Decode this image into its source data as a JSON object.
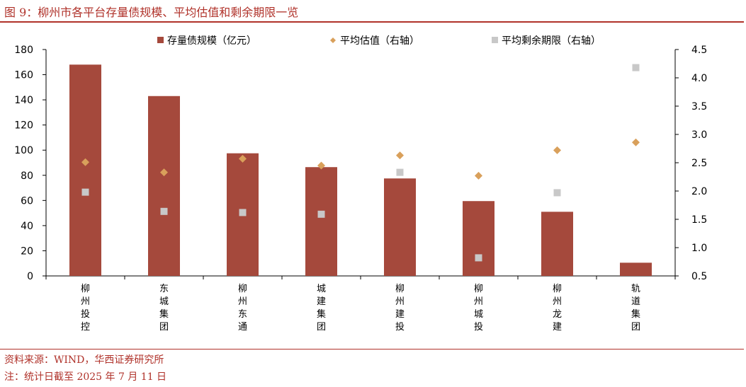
{
  "header": {
    "title": "图 9：柳州市各平台存量债规模、平均估值和剩余期限一览"
  },
  "footer": {
    "source": "资料来源：WIND，华西证券研究所",
    "note": "注：统计日截至 2025 年 7 月 11 日"
  },
  "chart_data": {
    "type": "bar",
    "categories": [
      "柳州投控",
      "东城集团",
      "柳州东通",
      "城建集团",
      "柳州建投",
      "柳州城投",
      "柳州龙建",
      "轨道集团"
    ],
    "series": [
      {
        "name": "存量债规模（亿元）",
        "type": "bar",
        "axis": "left",
        "color": "#a5493c",
        "values": [
          168,
          143,
          97.5,
          86.5,
          77.5,
          59.5,
          51,
          10.5
        ]
      },
      {
        "name": "平均估值（右轴）",
        "type": "scatter",
        "marker": "diamond",
        "axis": "right",
        "color": "#d9a05b",
        "values": [
          2.51,
          2.33,
          2.57,
          2.45,
          2.63,
          2.27,
          2.72,
          2.86
        ]
      },
      {
        "name": "平均剩余期限（右轴）",
        "type": "scatter",
        "marker": "square",
        "axis": "right",
        "color": "#c8c8c8",
        "values": [
          1.98,
          1.64,
          1.62,
          1.59,
          2.33,
          0.82,
          1.97,
          4.18
        ]
      }
    ],
    "ylim": [
      0,
      180
    ],
    "yticks": [
      0,
      20,
      40,
      60,
      80,
      100,
      120,
      140,
      160,
      180
    ],
    "y2lim": [
      0.5,
      4.5
    ],
    "y2ticks": [
      "0.5",
      "1.0",
      "1.5",
      "2.0",
      "2.5",
      "3.0",
      "3.5",
      "4.0",
      "4.5"
    ],
    "grid": false,
    "legend": "top"
  }
}
